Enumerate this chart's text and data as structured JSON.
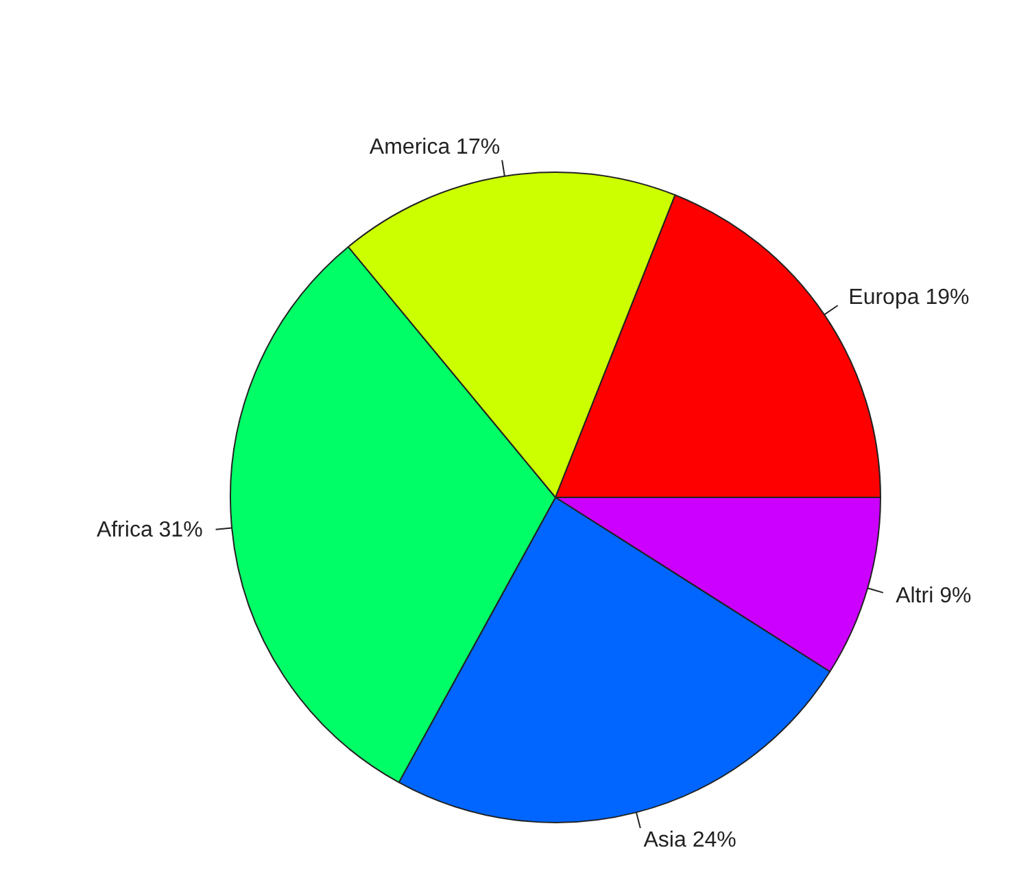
{
  "chart_data": {
    "type": "pie",
    "categories": [
      "Altri 9%",
      "Asia 24%",
      "Africa 31%",
      "America 17%",
      "Europa 19%"
    ],
    "values": [
      9,
      24,
      31,
      17,
      19
    ],
    "colors": [
      "#cc00ff",
      "#0066ff",
      "#00ff66",
      "#ccff00",
      "#ff0000"
    ],
    "legend": false
  }
}
